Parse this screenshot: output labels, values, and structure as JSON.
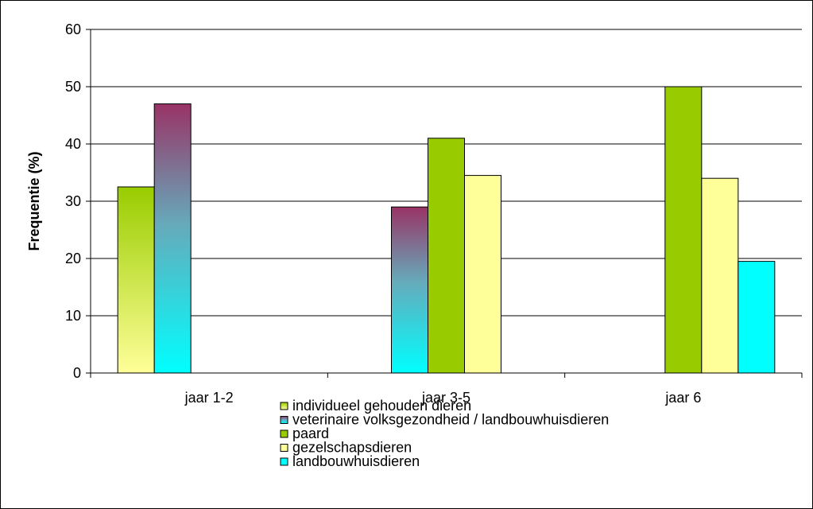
{
  "chart_data": {
    "type": "bar",
    "title": "",
    "xlabel": "",
    "ylabel": "Frequentie (%)",
    "ylim": [
      0,
      60
    ],
    "yticks": [
      "0",
      "10",
      "20",
      "30",
      "40",
      "50",
      "60"
    ],
    "categories": [
      "jaar 1-2",
      "jaar 3-5",
      "jaar 6"
    ],
    "grid": true,
    "legend_position": "bottom",
    "series": [
      {
        "name": "individueel gehouden dieren",
        "values": [
          32.5,
          null,
          null
        ],
        "fill": "grad-yellow-green",
        "legend_fill": "grad-yellow-green"
      },
      {
        "name": "veterinaire volksgezondheid / landbouwhuisdieren",
        "values": [
          47,
          29,
          null
        ],
        "fill": "grad-maroon-cyan",
        "legend_fill": "grad-maroon-cyan"
      },
      {
        "name": "paard",
        "values": [
          null,
          41,
          50
        ],
        "fill": "#99cc00",
        "legend_fill": "#99cc00"
      },
      {
        "name": "gezelschapsdieren",
        "values": [
          null,
          34.5,
          34
        ],
        "fill": "#ffff99",
        "legend_fill": "#ffff99"
      },
      {
        "name": "landbouwhuisdieren",
        "values": [
          null,
          null,
          19.5
        ],
        "fill": "#00ffff",
        "legend_fill": "#00ffff"
      }
    ]
  }
}
